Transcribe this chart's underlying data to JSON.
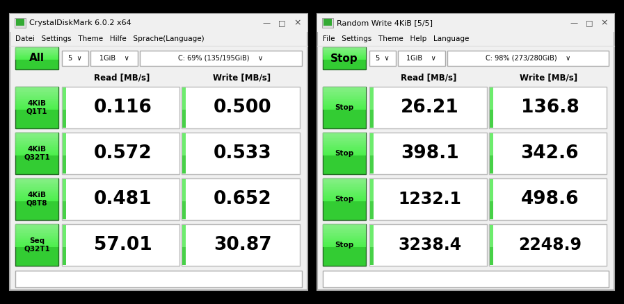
{
  "bg_color": "#000000",
  "window_bg": "#f0f0f0",
  "cell_bg": "#ffffff",
  "green_bright": "#44ee44",
  "green_mid": "#22cc22",
  "green_dark": "#006600",
  "left": {
    "title": "CrystalDiskMark 6.0.2 x64",
    "menu": "Datei   Settings   Theme   Hilfe   Sprache(Language)",
    "top_btn": "All",
    "dd1": "5  ∨",
    "dd2": "1GiB    ∨",
    "dd3": "C: 69% (135/195GiB)    ∨",
    "col1_header": "Read [MB/s]",
    "col2_header": "Write [MB/s]",
    "rows": [
      {
        "btn": "Seq\nQ32T1",
        "read": "57.01",
        "write": "30.87"
      },
      {
        "btn": "4KiB\nQ8T8",
        "read": "0.481",
        "write": "0.652"
      },
      {
        "btn": "4KiB\nQ32T1",
        "read": "0.572",
        "write": "0.533"
      },
      {
        "btn": "4KiB\nQ1T1",
        "read": "0.116",
        "write": "0.500"
      }
    ]
  },
  "right": {
    "title": "Random Write 4KiB [5/5]",
    "menu": "File   Settings   Theme   Help   Language",
    "top_btn": "Stop",
    "dd1": "5  ∨",
    "dd2": "1GiB    ∨",
    "dd3": "C: 98% (273/280GiB)    ∨",
    "col1_header": "Read [MB/s]",
    "col2_header": "Write [MB/s]",
    "rows": [
      {
        "btn": "Stop",
        "read": "3238.4",
        "write": "2248.9"
      },
      {
        "btn": "Stop",
        "read": "1232.1",
        "write": "498.6"
      },
      {
        "btn": "Stop",
        "read": "398.1",
        "write": "342.6"
      },
      {
        "btn": "Stop",
        "read": "26.21",
        "write": "136.8"
      }
    ]
  }
}
